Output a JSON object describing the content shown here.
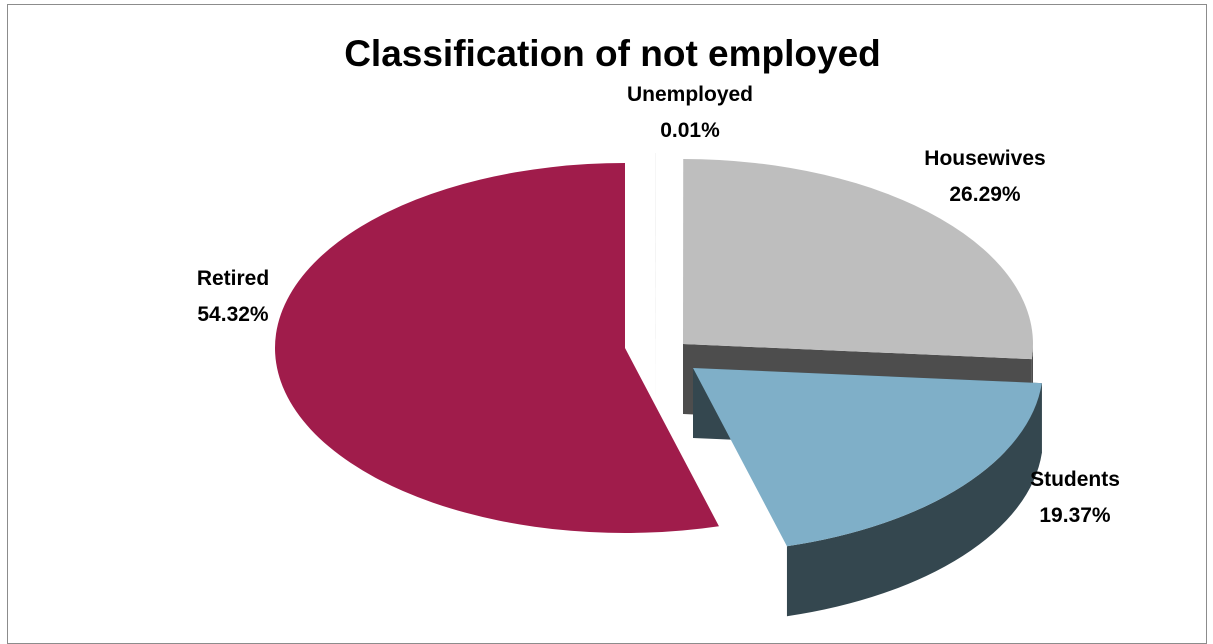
{
  "chart_data": {
    "type": "pie",
    "style": "3d-exploded",
    "title": "Classification of not employed",
    "slices": [
      {
        "label": "Retired",
        "value": 54.32,
        "value_text": "54.32%",
        "color": "#a01c4b",
        "side_color": "#6e1232"
      },
      {
        "label": "Unemployed",
        "value": 0.01,
        "value_text": "0.01%",
        "color": "#d9d9d9",
        "side_color": "#a6a6a6"
      },
      {
        "label": "Housewives",
        "value": 26.29,
        "value_text": "26.29%",
        "color": "#bebebe",
        "side_color": "#4d4d4d"
      },
      {
        "label": "Students",
        "value": 19.37,
        "value_text": "19.37%",
        "color": "#7fafc8",
        "side_color": "#34474f"
      }
    ],
    "legend": "none",
    "data_labels": "category and percentage"
  }
}
